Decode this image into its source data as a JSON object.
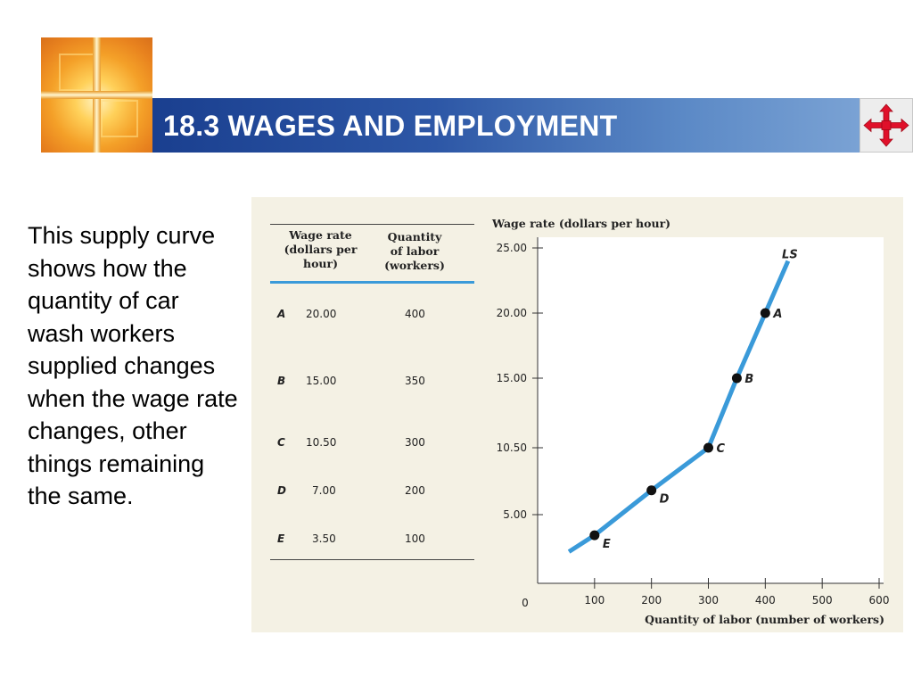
{
  "header": {
    "title": "18.3 WAGES AND EMPLOYMENT"
  },
  "description": "This supply curve shows how the quantity of car wash workers supplied changes when the wage rate changes, other things remaining the same.",
  "table": {
    "headers": [
      "",
      "Wage rate\n(dollars per\nhour)",
      "Quantity\nof labor\n(workers)"
    ],
    "header_wage": [
      "Wage rate",
      "(dollars per",
      "hour)"
    ],
    "header_qty": [
      "Quantity",
      "of labor",
      "(workers)"
    ],
    "rows": [
      {
        "label": "A",
        "wage": "20.00",
        "qty": "400"
      },
      {
        "label": "B",
        "wage": "15.00",
        "qty": "350"
      },
      {
        "label": "C",
        "wage": "10.50",
        "qty": "300"
      },
      {
        "label": "D",
        "wage": "7.00",
        "qty": "200"
      },
      {
        "label": "E",
        "wage": "3.50",
        "qty": "100"
      }
    ]
  },
  "colors": {
    "curve": "#3a9ad9",
    "title_bar": "#1a3f8f",
    "table_rule": "#3a9ad9"
  },
  "chart_data": {
    "type": "line",
    "title": "",
    "ylabel": "Wage rate (dollars per hour)",
    "xlabel": "Quantity of labor (number of workers)",
    "xlim": [
      0,
      600
    ],
    "ylim": [
      0,
      25
    ],
    "x_ticks": [
      100,
      200,
      300,
      400,
      500,
      600
    ],
    "x_tick_labels": [
      "100",
      "200",
      "300",
      "400",
      "500",
      "600"
    ],
    "y_ticks": [
      5,
      10.5,
      15,
      20,
      25
    ],
    "y_tick_labels": [
      "5.00",
      "10.50",
      "15.00",
      "20.00",
      "25.00"
    ],
    "origin_label": "0",
    "grid": false,
    "series": [
      {
        "name": "LS",
        "x": [
          55,
          100,
          200,
          300,
          350,
          400,
          440
        ],
        "y": [
          2.3,
          3.5,
          7.0,
          10.5,
          15.0,
          20.0,
          24.0
        ]
      }
    ],
    "points": [
      {
        "label": "A",
        "x": 400,
        "y": 20.0
      },
      {
        "label": "B",
        "x": 350,
        "y": 15.0
      },
      {
        "label": "C",
        "x": 300,
        "y": 10.5
      },
      {
        "label": "D",
        "x": 200,
        "y": 7.0
      },
      {
        "label": "E",
        "x": 100,
        "y": 3.5
      }
    ]
  }
}
